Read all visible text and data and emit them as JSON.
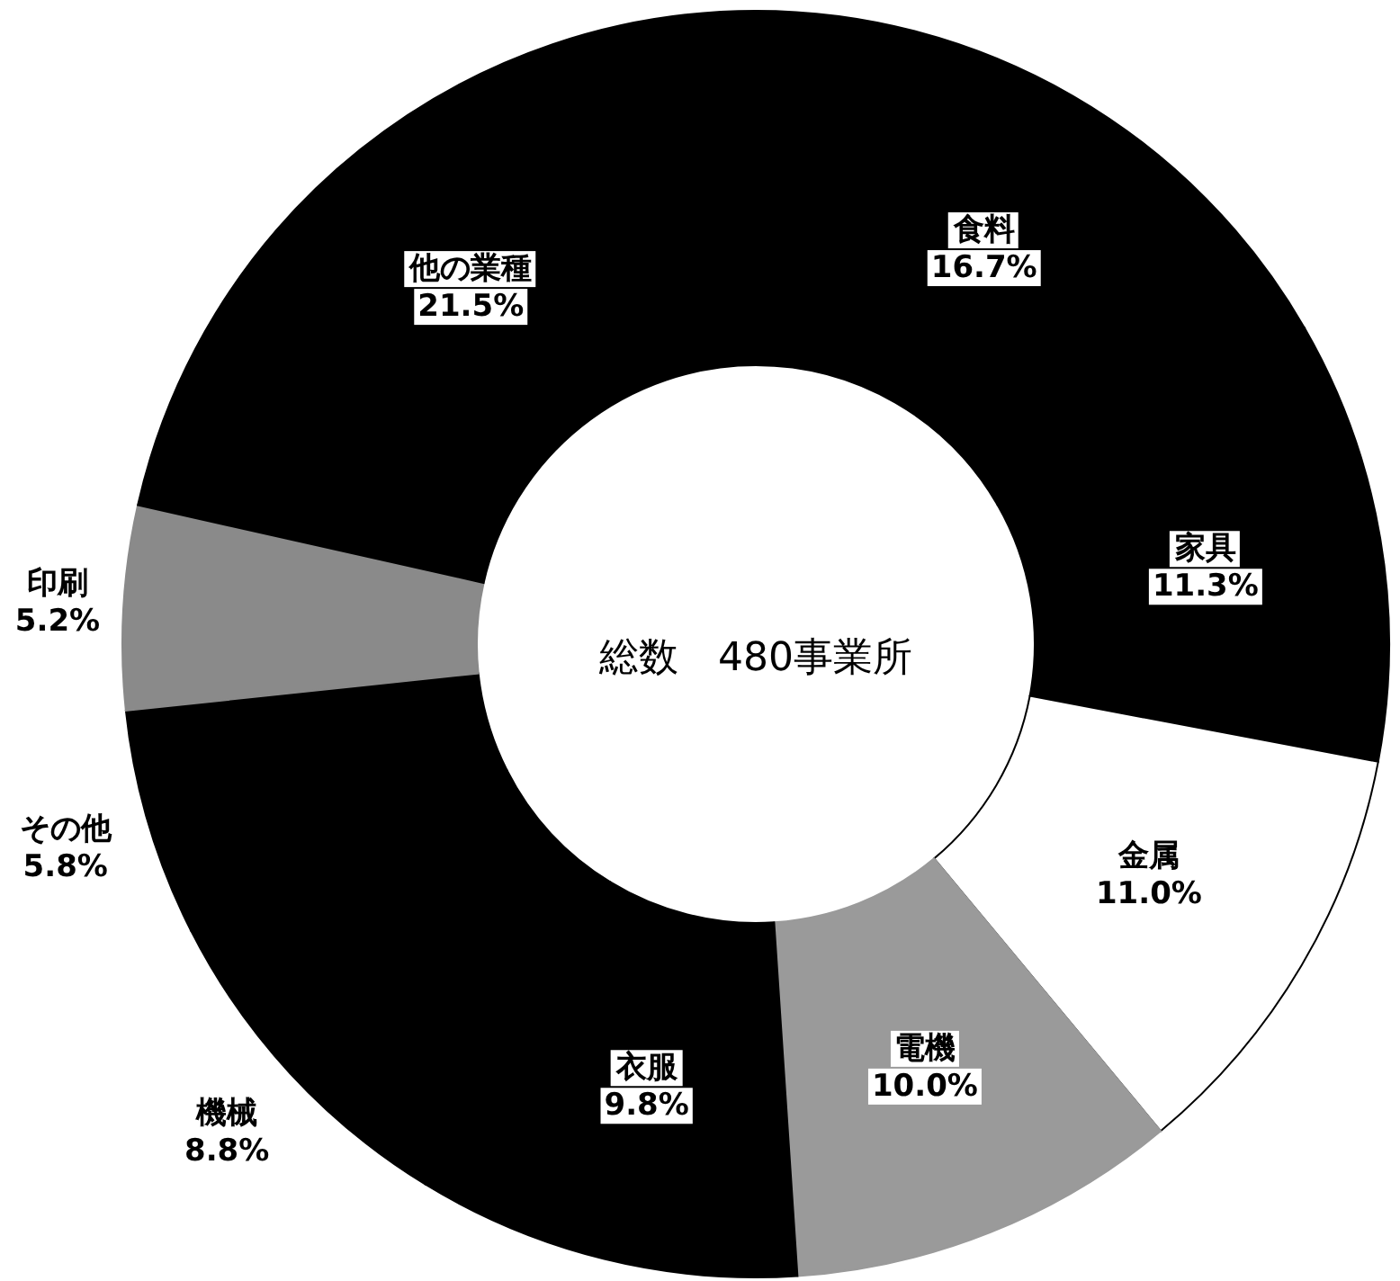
{
  "chart_data": {
    "type": "donut",
    "categories": [
      "食料",
      "家具",
      "金属",
      "電機",
      "衣服",
      "機械",
      "その他",
      "印刷",
      "他の業種"
    ],
    "values": [
      16.7,
      11.3,
      11.0,
      10.0,
      9.8,
      8.8,
      5.8,
      5.2,
      21.5
    ],
    "value_labels": [
      "16.7%",
      "11.3%",
      "11.0%",
      "10.0%",
      "9.8%",
      "8.8%",
      "5.8%",
      "5.2%",
      "21.5%"
    ],
    "colors": [
      "#000000",
      "#000000",
      "#ffffff",
      "#9a9a9a",
      "#000000",
      "#000000",
      "#000000",
      "#8a8a8a",
      "#000000"
    ],
    "annotations": [
      "総数　480事業所"
    ]
  }
}
